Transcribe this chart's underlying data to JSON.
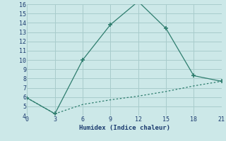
{
  "xlabel": "Humidex (Indice chaleur)",
  "line1_x": [
    0,
    3,
    6,
    9,
    12,
    15,
    18,
    21
  ],
  "line1_y": [
    5.9,
    4.2,
    10.0,
    13.8,
    16.3,
    13.4,
    8.3,
    7.7
  ],
  "line2_x": [
    0,
    3,
    6,
    9,
    12,
    15,
    18,
    21
  ],
  "line2_y": [
    5.9,
    4.2,
    5.2,
    5.7,
    6.1,
    6.6,
    7.2,
    7.7
  ],
  "line_color": "#2e7d6e",
  "bg_color": "#cce8e8",
  "grid_color": "#a8cccc",
  "ylim": [
    4,
    16
  ],
  "xlim": [
    0,
    21
  ],
  "yticks": [
    4,
    5,
    6,
    7,
    8,
    9,
    10,
    11,
    12,
    13,
    14,
    15,
    16
  ],
  "xticks": [
    0,
    3,
    6,
    9,
    12,
    15,
    18,
    21
  ],
  "xlabel_color": "#1a3a6e",
  "tick_color": "#1a3a6e"
}
